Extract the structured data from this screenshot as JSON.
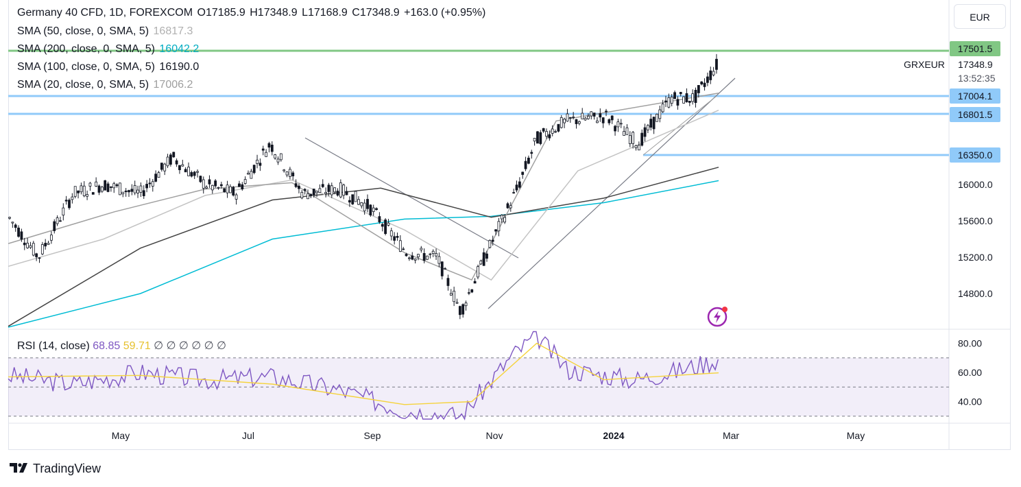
{
  "header": {
    "title": "Germany 40 CFD, 1D, FOREXCOM",
    "ohlc": {
      "o": "O17185.9",
      "h": "H17348.9",
      "l": "L17168.9",
      "c": "C17348.9",
      "chg": "+163.0 (+0.95%)"
    }
  },
  "indicators": [
    {
      "label": "SMA (50, close, 0, SMA, 5)",
      "value": "16817.3",
      "color": "#c3c3c3"
    },
    {
      "label": "SMA (200, close, 0, SMA, 5)",
      "value": "16042.2",
      "color": "#00bcd4"
    },
    {
      "label": "SMA (100, close, 0, SMA, 5)",
      "value": "16190.0",
      "color": "#555555"
    },
    {
      "label": "SMA (20, close, 0, SMA, 5)",
      "value": "17006.2",
      "color": "#9e9e9e"
    }
  ],
  "currency": "EUR",
  "symbol": "GRXEUR",
  "last_price": "17348.9",
  "countdown": "13:52:35",
  "brand": "TradingView",
  "levels": [
    {
      "label": "17501.5",
      "value": 17501.5,
      "color": "#81c784"
    },
    {
      "label": "17004.1",
      "value": 17004.1,
      "color": "#90caf9"
    },
    {
      "label": "16801.5",
      "value": 16801.5,
      "color": "#90caf9"
    },
    {
      "label": "16350.0",
      "value": 16350.0,
      "color": "#90caf9"
    }
  ],
  "rsi": {
    "label": "RSI (14, close)",
    "value": "68.85",
    "ma_value": "59.71",
    "extras": "∅ ∅ ∅ ∅ ∅ ∅",
    "line_color": "#7e57c2",
    "ma_color": "#f5d33b",
    "ticks": [
      "80.00",
      "60.00",
      "40.00"
    ]
  },
  "chart_data": {
    "type": "line",
    "title": "Germany 40 CFD, 1D, FOREXCOM",
    "x_ticks": [
      "May",
      "Jul",
      "Sep",
      "Nov",
      "2024",
      "Mar",
      "May"
    ],
    "y_ticks": [
      16000,
      15600,
      15200,
      14800
    ],
    "y_tick_labels": [
      "16000.0",
      "15600.0",
      "15200.0",
      "14800.0"
    ],
    "ylim": [
      14420,
      17800
    ],
    "series": [
      {
        "name": "Price",
        "x": [
          "2023-04-01",
          "2023-04-15",
          "2023-05-01",
          "2023-05-15",
          "2023-06-01",
          "2023-06-16",
          "2023-07-01",
          "2023-07-15",
          "2023-07-31",
          "2023-08-15",
          "2023-09-01",
          "2023-09-15",
          "2023-10-02",
          "2023-10-16",
          "2023-10-27",
          "2023-11-08",
          "2023-11-22",
          "2023-12-01",
          "2023-12-15",
          "2024-01-02",
          "2024-01-17",
          "2024-02-01",
          "2024-02-12",
          "2024-02-23"
        ],
        "values": [
          15650,
          15200,
          15900,
          16000,
          15900,
          16300,
          16000,
          15900,
          16450,
          15900,
          15950,
          15750,
          15250,
          15200,
          14600,
          15250,
          15950,
          16500,
          16700,
          16750,
          16450,
          16950,
          16950,
          17348.9
        ]
      },
      {
        "name": "SMA 200",
        "x": [
          "2023-04-01",
          "2023-06-01",
          "2023-08-01",
          "2023-10-01",
          "2023-11-10",
          "2024-01-01",
          "2024-02-23"
        ],
        "values": [
          14430,
          14800,
          15400,
          15620,
          15650,
          15800,
          16042.2
        ]
      },
      {
        "name": "SMA 100",
        "x": [
          "2023-04-01",
          "2023-06-01",
          "2023-08-01",
          "2023-09-20",
          "2023-11-10",
          "2024-01-01",
          "2024-02-23"
        ],
        "values": [
          14440,
          15300,
          15830,
          15960,
          15640,
          15850,
          16190
        ]
      },
      {
        "name": "SMA 50",
        "x": [
          "2023-04-01",
          "2023-05-15",
          "2023-07-01",
          "2023-08-10",
          "2023-10-01",
          "2023-11-10",
          "2023-12-20",
          "2024-02-23"
        ],
        "values": [
          15100,
          15400,
          15880,
          16050,
          15500,
          14950,
          16150,
          16817.3
        ]
      },
      {
        "name": "SMA 20",
        "x": [
          "2023-04-01",
          "2023-05-20",
          "2023-07-01",
          "2023-08-10",
          "2023-10-01",
          "2023-11-01",
          "2023-12-10",
          "2024-02-23"
        ],
        "values": [
          15350,
          15700,
          15950,
          16020,
          15250,
          14950,
          16700,
          17006.2
        ]
      }
    ],
    "rsi_series": {
      "x": [
        "2023-04-01",
        "2023-05-01",
        "2023-06-01",
        "2023-07-01",
        "2023-08-01",
        "2023-09-01",
        "2023-10-01",
        "2023-10-27",
        "2023-11-20",
        "2023-12-01",
        "2023-12-15",
        "2024-01-15",
        "2024-02-01",
        "2024-02-23"
      ],
      "values": [
        58,
        52,
        60,
        55,
        57,
        48,
        34,
        30,
        72,
        85,
        62,
        55,
        60,
        68.85
      ]
    },
    "rsi_ma": {
      "x": [
        "2023-04-01",
        "2023-06-01",
        "2023-08-01",
        "2023-10-01",
        "2023-11-01",
        "2023-12-01",
        "2024-01-01",
        "2024-02-23"
      ],
      "values": [
        57,
        58,
        52,
        38,
        40,
        80,
        55,
        59.71
      ]
    },
    "rsi_ylim": [
      20,
      100
    ]
  }
}
